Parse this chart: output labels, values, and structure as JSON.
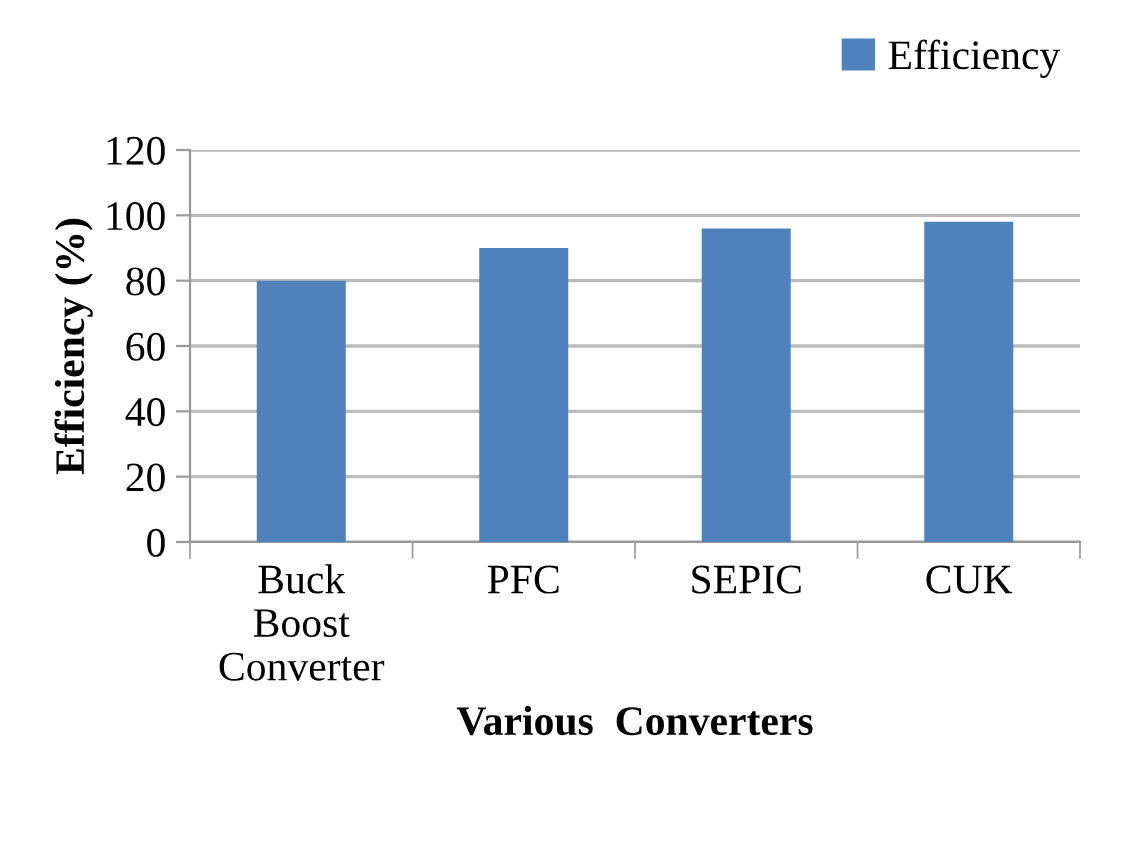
{
  "chart_data": {
    "type": "bar",
    "xlabel": "Various  Converters",
    "ylabel": "Efficiency (%)",
    "categories": [
      "Buck Boost Converter",
      "PFC",
      "SEPIC",
      "CUK"
    ],
    "series": [
      {
        "name": "Efficiency",
        "color": "#4f81bd",
        "values": [
          80,
          90,
          96,
          98
        ]
      }
    ],
    "ylim": [
      0,
      120
    ],
    "yticks": [
      0,
      20,
      40,
      60,
      80,
      100,
      120
    ],
    "grid": "y",
    "legend": "top right"
  }
}
